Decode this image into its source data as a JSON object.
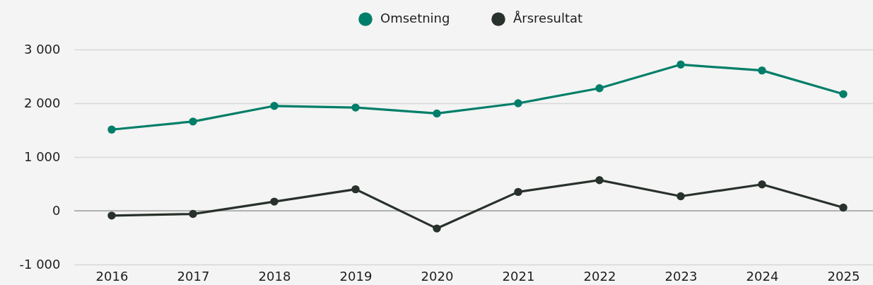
{
  "chart_data": {
    "type": "line",
    "categories": [
      "2016",
      "2017",
      "2018",
      "2019",
      "2020",
      "2021",
      "2022",
      "2023",
      "2024",
      "2025"
    ],
    "series": [
      {
        "name": "Omsetning",
        "color": "#007e69",
        "values": [
          1510,
          1660,
          1950,
          1920,
          1810,
          2000,
          2280,
          2720,
          2610,
          2170
        ]
      },
      {
        "name": "Årsresultat",
        "color": "#28312b",
        "values": [
          -90,
          -60,
          170,
          400,
          -330,
          350,
          570,
          270,
          490,
          60
        ]
      }
    ],
    "ylim": [
      -1000,
      3000
    ],
    "yticks": [
      {
        "value": -1000,
        "label": "-1 000"
      },
      0,
      {
        "value": 1000,
        "label": "1 000"
      },
      {
        "value": 2000,
        "label": "2 000"
      },
      {
        "value": 3000,
        "label": "3 000"
      }
    ],
    "grid": "y",
    "legend": "top",
    "marker": "circle",
    "line_style": "solid",
    "ref_lines": [
      {
        "axis": "y",
        "value": 0,
        "color": "#a3a3a3"
      }
    ]
  }
}
